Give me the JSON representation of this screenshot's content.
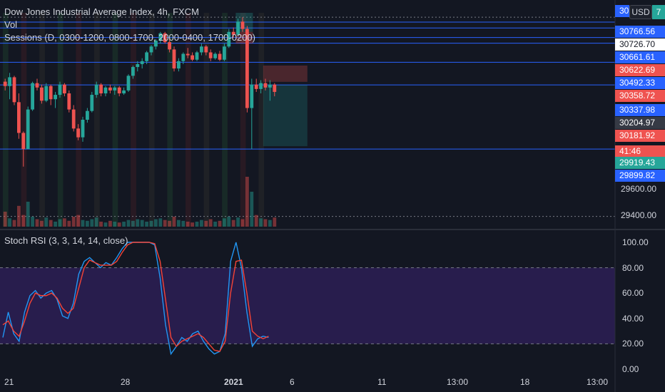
{
  "header": {
    "symbol_title": "Dow Jones Industrial Average Index, 4h, FXCM",
    "vol_label": "Vol",
    "sessions_label": "Sessions (D, 0300-1200, 0800-1700, 2000-0400, 1700-0200)",
    "currency_button": "USD",
    "currency_peek": "7",
    "top_peek": "30"
  },
  "price_axis": {
    "tags": [
      {
        "text": "30766.56",
        "bg": "#2962ff"
      },
      {
        "text": "30726.70",
        "bg": "#ffffff",
        "fg": "#131722"
      },
      {
        "text": "30661.61",
        "bg": "#2962ff"
      },
      {
        "text": "30622.69",
        "bg": "#ef5350"
      },
      {
        "text": "30492.33",
        "bg": "#2962ff"
      },
      {
        "text": "30358.72",
        "bg": "#ef5350"
      },
      {
        "text": "30337.98",
        "bg": "#2962ff"
      },
      {
        "text": "30204.97",
        "bg": "#363a45"
      },
      {
        "text": "30181.92",
        "bg": "#ef5350"
      },
      {
        "text": "41:46",
        "bg": "#ef5350"
      },
      {
        "text": "29919.43",
        "bg": "#26a69a"
      },
      {
        "text": "29899.82",
        "bg": "#2962ff"
      }
    ],
    "ticks": [
      "29600.00",
      "29400.00"
    ]
  },
  "stoch_panel": {
    "title": "Stoch RSI (3, 3, 14, 14, close)",
    "ticks": [
      "100.00",
      "80.00",
      "60.00",
      "40.00",
      "20.00",
      "0.00"
    ]
  },
  "time_axis": {
    "labels": [
      "21",
      "28",
      "2021",
      "6",
      "11",
      "13:00",
      "18",
      "13:00"
    ]
  },
  "colors": {
    "background": "#131722",
    "up": "#26a69a",
    "down": "#ef5350",
    "line_blue": "#2962ff",
    "k_line": "#2196f3",
    "d_line": "#f44336",
    "band": "#2b1e52"
  },
  "chart_data": [
    {
      "type": "candlestick",
      "title": "Dow Jones Industrial Average Index, 4h, FXCM",
      "ylim": [
        29370,
        30830
      ],
      "ohlc": [
        {
          "o": 30360,
          "h": 30380,
          "l": 30300,
          "c": 30330
        },
        {
          "o": 30330,
          "h": 30420,
          "l": 30240,
          "c": 30390
        },
        {
          "o": 30390,
          "h": 30400,
          "l": 30200,
          "c": 30220
        },
        {
          "o": 30220,
          "h": 30280,
          "l": 29970,
          "c": 30010
        },
        {
          "o": 30010,
          "h": 30020,
          "l": 29780,
          "c": 29900
        },
        {
          "o": 29900,
          "h": 30190,
          "l": 29900,
          "c": 30170
        },
        {
          "o": 30170,
          "h": 30360,
          "l": 30160,
          "c": 30350
        },
        {
          "o": 30350,
          "h": 30380,
          "l": 30300,
          "c": 30320
        },
        {
          "o": 30320,
          "h": 30340,
          "l": 30210,
          "c": 30230
        },
        {
          "o": 30230,
          "h": 30350,
          "l": 30220,
          "c": 30330
        },
        {
          "o": 30330,
          "h": 30340,
          "l": 30200,
          "c": 30240
        },
        {
          "o": 30240,
          "h": 30290,
          "l": 30180,
          "c": 30270
        },
        {
          "o": 30270,
          "h": 30360,
          "l": 30250,
          "c": 30340
        },
        {
          "o": 30340,
          "h": 30350,
          "l": 30260,
          "c": 30280
        },
        {
          "o": 30280,
          "h": 30300,
          "l": 30150,
          "c": 30170
        },
        {
          "o": 30170,
          "h": 30200,
          "l": 30020,
          "c": 30040
        },
        {
          "o": 30040,
          "h": 30070,
          "l": 29960,
          "c": 29980
        },
        {
          "o": 29980,
          "h": 30120,
          "l": 29950,
          "c": 30100
        },
        {
          "o": 30100,
          "h": 30180,
          "l": 30080,
          "c": 30160
        },
        {
          "o": 30160,
          "h": 30290,
          "l": 30150,
          "c": 30270
        },
        {
          "o": 30270,
          "h": 30360,
          "l": 30250,
          "c": 30340
        },
        {
          "o": 30340,
          "h": 30350,
          "l": 30260,
          "c": 30280
        },
        {
          "o": 30280,
          "h": 30330,
          "l": 30260,
          "c": 30320
        },
        {
          "o": 30320,
          "h": 30340,
          "l": 30280,
          "c": 30300
        },
        {
          "o": 30300,
          "h": 30330,
          "l": 30270,
          "c": 30320
        },
        {
          "o": 30320,
          "h": 30330,
          "l": 30260,
          "c": 30280
        },
        {
          "o": 30280,
          "h": 30320,
          "l": 30270,
          "c": 30300
        },
        {
          "o": 30300,
          "h": 30410,
          "l": 30290,
          "c": 30400
        },
        {
          "o": 30400,
          "h": 30470,
          "l": 30380,
          "c": 30460
        },
        {
          "o": 30460,
          "h": 30500,
          "l": 30430,
          "c": 30480
        },
        {
          "o": 30480,
          "h": 30520,
          "l": 30450,
          "c": 30500
        },
        {
          "o": 30500,
          "h": 30570,
          "l": 30480,
          "c": 30560
        },
        {
          "o": 30560,
          "h": 30610,
          "l": 30540,
          "c": 30600
        },
        {
          "o": 30600,
          "h": 30650,
          "l": 30580,
          "c": 30640
        },
        {
          "o": 30640,
          "h": 30700,
          "l": 30620,
          "c": 30690
        },
        {
          "o": 30690,
          "h": 30700,
          "l": 30620,
          "c": 30630
        },
        {
          "o": 30630,
          "h": 30660,
          "l": 30560,
          "c": 30580
        },
        {
          "o": 30580,
          "h": 30600,
          "l": 30430,
          "c": 30450
        },
        {
          "o": 30450,
          "h": 30520,
          "l": 30430,
          "c": 30500
        },
        {
          "o": 30500,
          "h": 30560,
          "l": 30480,
          "c": 30550
        },
        {
          "o": 30550,
          "h": 30590,
          "l": 30520,
          "c": 30540
        },
        {
          "o": 30540,
          "h": 30560,
          "l": 30500,
          "c": 30510
        },
        {
          "o": 30510,
          "h": 30570,
          "l": 30500,
          "c": 30560
        },
        {
          "o": 30560,
          "h": 30620,
          "l": 30540,
          "c": 30600
        },
        {
          "o": 30600,
          "h": 30610,
          "l": 30540,
          "c": 30560
        },
        {
          "o": 30560,
          "h": 30580,
          "l": 30500,
          "c": 30520
        },
        {
          "o": 30520,
          "h": 30560,
          "l": 30510,
          "c": 30550
        },
        {
          "o": 30550,
          "h": 30570,
          "l": 30500,
          "c": 30510
        },
        {
          "o": 30510,
          "h": 30620,
          "l": 30500,
          "c": 30600
        },
        {
          "o": 30600,
          "h": 30720,
          "l": 30590,
          "c": 30700
        },
        {
          "o": 30700,
          "h": 30730,
          "l": 30660,
          "c": 30680
        },
        {
          "o": 30680,
          "h": 30790,
          "l": 30670,
          "c": 30770
        },
        {
          "o": 30770,
          "h": 30800,
          "l": 30700,
          "c": 30720
        },
        {
          "o": 30720,
          "h": 30740,
          "l": 30150,
          "c": 30180
        },
        {
          "o": 30180,
          "h": 30380,
          "l": 29900,
          "c": 30340
        },
        {
          "o": 30340,
          "h": 30380,
          "l": 30290,
          "c": 30310
        },
        {
          "o": 30310,
          "h": 30370,
          "l": 30280,
          "c": 30350
        },
        {
          "o": 30350,
          "h": 30380,
          "l": 30300,
          "c": 30320
        },
        {
          "o": 30320,
          "h": 30370,
          "l": 30230,
          "c": 30340
        },
        {
          "o": 30340,
          "h": 30350,
          "l": 30260,
          "c": 30290
        }
      ],
      "volume": [
        18,
        10,
        8,
        25,
        14,
        30,
        12,
        9,
        7,
        11,
        8,
        6,
        9,
        10,
        7,
        12,
        14,
        8,
        7,
        9,
        11,
        6,
        5,
        7,
        6,
        5,
        6,
        8,
        7,
        9,
        8,
        6,
        7,
        9,
        10,
        8,
        7,
        12,
        8,
        7,
        6,
        5,
        6,
        8,
        7,
        9,
        6,
        7,
        10,
        12,
        8,
        11,
        9,
        60,
        42,
        14,
        10,
        9,
        8,
        11
      ],
      "horizontal_levels": [
        30766.56,
        30726.7,
        30661.61,
        30622.69,
        30492.33,
        30337.98,
        29899.82
      ],
      "dotted_levels": [
        30800,
        29440
      ]
    },
    {
      "type": "line",
      "title": "Stoch RSI (3, 3, 14, 14, close)",
      "ylim": [
        0,
        100
      ],
      "band": [
        20,
        80
      ],
      "series": [
        {
          "name": "K",
          "values": [
            25,
            45,
            28,
            22,
            45,
            58,
            62,
            56,
            60,
            62,
            55,
            42,
            40,
            52,
            75,
            85,
            88,
            84,
            80,
            84,
            82,
            88,
            95,
            100,
            100,
            100,
            100,
            100,
            98,
            72,
            35,
            12,
            18,
            25,
            22,
            28,
            30,
            22,
            16,
            12,
            14,
            28,
            85,
            100,
            80,
            45,
            18,
            24,
            26,
            25
          ]
        },
        {
          "name": "D",
          "values": [
            35,
            38,
            30,
            26,
            38,
            52,
            60,
            58,
            58,
            60,
            56,
            48,
            44,
            48,
            64,
            80,
            86,
            84,
            82,
            82,
            82,
            85,
            92,
            98,
            100,
            100,
            100,
            100,
            99,
            85,
            55,
            25,
            18,
            22,
            24,
            26,
            28,
            25,
            20,
            15,
            14,
            22,
            60,
            85,
            86,
            60,
            30,
            26,
            24,
            26
          ]
        }
      ]
    }
  ]
}
